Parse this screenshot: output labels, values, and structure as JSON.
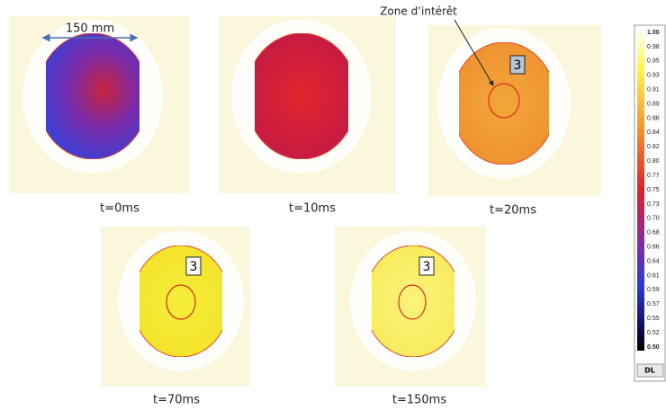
{
  "annotations": {
    "scale": "150 mm",
    "zone": "Zone d’intérêt"
  },
  "panels": [
    {
      "caption": "t=0ms"
    },
    {
      "caption": "t=10ms"
    },
    {
      "caption": "t=20ms",
      "marker": "3"
    },
    {
      "caption": "t=70ms",
      "marker": "3"
    },
    {
      "caption": "t=150ms",
      "marker": "3"
    }
  ],
  "colorbar": {
    "ticks": [
      "1.00",
      "0.98",
      "0.95",
      "0.93",
      "0.91",
      "0.89",
      "0.86",
      "0.84",
      "0.82",
      "0.80",
      "0.77",
      "0.75",
      "0.73",
      "0.70",
      "0.68",
      "0.66",
      "0.64",
      "0.61",
      "0.59",
      "0.57",
      "0.55",
      "0.52",
      "0.50"
    ],
    "unit": "DL"
  }
}
